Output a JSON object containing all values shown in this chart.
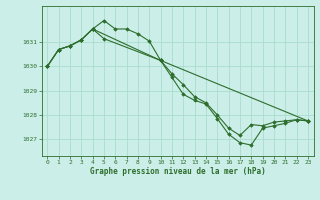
{
  "title": "Graphe pression niveau de la mer (hPa)",
  "bg_color": "#cceee8",
  "grid_color": "#aaddcc",
  "line_color": "#2d6e2d",
  "xlim": [
    -0.5,
    23.5
  ],
  "ylim": [
    1026.3,
    1032.5
  ],
  "yticks": [
    1027,
    1028,
    1029,
    1030,
    1031
  ],
  "xticks": [
    0,
    1,
    2,
    3,
    4,
    5,
    6,
    7,
    8,
    9,
    10,
    11,
    12,
    13,
    14,
    15,
    16,
    17,
    18,
    19,
    20,
    21,
    22,
    23
  ],
  "series": [
    {
      "x": [
        0,
        1,
        2,
        3,
        4,
        5,
        6,
        7,
        8,
        9,
        10,
        11,
        12,
        13,
        14,
        15,
        16,
        17,
        18,
        19,
        20,
        21,
        22,
        23
      ],
      "y": [
        1030.0,
        1030.7,
        1030.85,
        1031.1,
        1031.55,
        1031.9,
        1031.55,
        1031.55,
        1031.35,
        1031.05,
        1030.25,
        1029.7,
        1029.25,
        1028.75,
        1028.5,
        1028.0,
        1027.45,
        1027.15,
        1027.6,
        1027.55,
        1027.7,
        1027.75,
        1027.8,
        1027.75
      ]
    },
    {
      "x": [
        0,
        1,
        2,
        3,
        4,
        5,
        10,
        11,
        12,
        13,
        14,
        15,
        16,
        17,
        18,
        19,
        20,
        21,
        22,
        23
      ],
      "y": [
        1030.0,
        1030.7,
        1030.85,
        1031.1,
        1031.55,
        1031.15,
        1030.25,
        1029.55,
        1028.85,
        1028.6,
        1028.45,
        1027.85,
        1027.2,
        1026.85,
        1026.75,
        1027.45,
        1027.55,
        1027.65,
        1027.8,
        1027.75
      ]
    },
    {
      "x": [
        0,
        1,
        2,
        3,
        4,
        10,
        23
      ],
      "y": [
        1030.0,
        1030.7,
        1030.85,
        1031.1,
        1031.55,
        1030.25,
        1027.75
      ]
    }
  ]
}
